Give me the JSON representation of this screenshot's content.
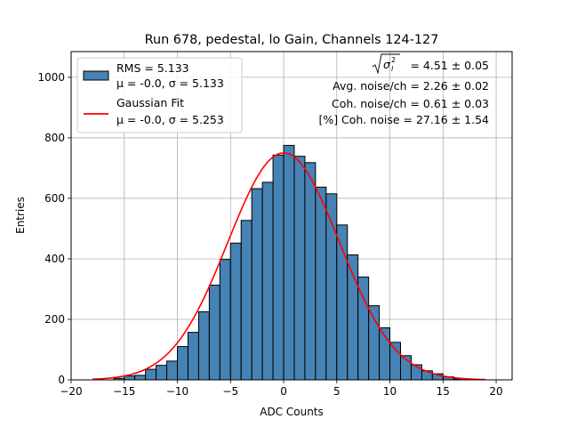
{
  "chart_data": {
    "type": "histogram",
    "title": "Run 678, pedestal, lo Gain, Channels 124-127",
    "xlabel": "ADC Counts",
    "ylabel": "Entries",
    "xlim": [
      -20,
      21.5
    ],
    "ylim": [
      0,
      1085
    ],
    "grid": true,
    "bar_color": "#4682b4",
    "fit_color": "#ff0000",
    "x_ticks": [
      -20,
      -15,
      -10,
      -5,
      0,
      5,
      10,
      15,
      20
    ],
    "y_ticks": [
      0,
      200,
      400,
      600,
      800,
      1000
    ],
    "bins": [
      {
        "x0": -16,
        "x1": -15,
        "count": 5
      },
      {
        "x0": -15,
        "x1": -14,
        "count": 13
      },
      {
        "x0": -14,
        "x1": -13,
        "count": 15
      },
      {
        "x0": -13,
        "x1": -12,
        "count": 35
      },
      {
        "x0": -12,
        "x1": -11,
        "count": 48
      },
      {
        "x0": -11,
        "x1": -10,
        "count": 62
      },
      {
        "x0": -10,
        "x1": -9,
        "count": 110
      },
      {
        "x0": -9,
        "x1": -8,
        "count": 157
      },
      {
        "x0": -8,
        "x1": -7,
        "count": 225
      },
      {
        "x0": -7,
        "x1": -6,
        "count": 313
      },
      {
        "x0": -6,
        "x1": -5,
        "count": 398
      },
      {
        "x0": -5,
        "x1": -4,
        "count": 452
      },
      {
        "x0": -4,
        "x1": -3,
        "count": 527
      },
      {
        "x0": -3,
        "x1": -2,
        "count": 632
      },
      {
        "x0": -2,
        "x1": -1,
        "count": 653
      },
      {
        "x0": -1,
        "x1": 0,
        "count": 743
      },
      {
        "x0": 0,
        "x1": 1,
        "count": 775
      },
      {
        "x0": 1,
        "x1": 2,
        "count": 739
      },
      {
        "x0": 2,
        "x1": 3,
        "count": 718
      },
      {
        "x0": 3,
        "x1": 4,
        "count": 637
      },
      {
        "x0": 4,
        "x1": 5,
        "count": 615
      },
      {
        "x0": 5,
        "x1": 6,
        "count": 512
      },
      {
        "x0": 6,
        "x1": 7,
        "count": 413
      },
      {
        "x0": 7,
        "x1": 8,
        "count": 340
      },
      {
        "x0": 8,
        "x1": 9,
        "count": 245
      },
      {
        "x0": 9,
        "x1": 10,
        "count": 172
      },
      {
        "x0": 10,
        "x1": 11,
        "count": 124
      },
      {
        "x0": 11,
        "x1": 12,
        "count": 80
      },
      {
        "x0": 12,
        "x1": 13,
        "count": 50
      },
      {
        "x0": 13,
        "x1": 14,
        "count": 30
      },
      {
        "x0": 14,
        "x1": 15,
        "count": 20
      },
      {
        "x0": 15,
        "x1": 16,
        "count": 10
      },
      {
        "x0": 16,
        "x1": 17,
        "count": 3
      }
    ],
    "fit": {
      "mu": 0.0,
      "sigma": 5.253,
      "amplitude": 750,
      "x_range": [
        -18,
        19
      ]
    },
    "legend": {
      "position": "upper-left",
      "entries": [
        {
          "label": "RMS = 5.133",
          "sublabel": "μ = -0.0, σ = 5.133",
          "kind": "patch"
        },
        {
          "label": "Gaussian Fit",
          "sublabel": "μ = -0.0, σ = 5.253",
          "kind": "line"
        }
      ]
    },
    "annotations": {
      "sigma_total_value": "= 4.51 ± 0.05",
      "avg_noise": "Avg. noise/ch = 2.26 ± 0.02",
      "coh_noise": "Coh. noise/ch = 0.61 ± 0.03",
      "coh_noise_pct": "[%] Coh. noise = 27.16 ± 1.54"
    }
  }
}
